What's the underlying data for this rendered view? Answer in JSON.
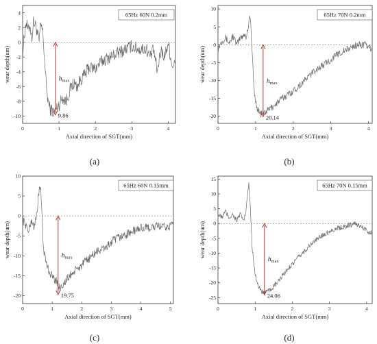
{
  "chart_data": [
    {
      "type": "line",
      "panel_label": "(a)",
      "legend": "65Hz 60N 0.2mm",
      "xlabel": "Axial direction of SGT(mm)",
      "ylabel": "wear depth(um)",
      "xlim": [
        0,
        4.2
      ],
      "ylim": [
        -11,
        5
      ],
      "xticks": [
        0,
        1,
        2,
        3,
        4
      ],
      "yticks": [
        4,
        2,
        0,
        -2,
        -4,
        -6,
        -8,
        -10
      ],
      "xtick_labels": [
        "0",
        "1",
        "2",
        "3",
        "4"
      ],
      "ytick_labels": [
        "4",
        "2",
        "0",
        "-2",
        "-4",
        "-6",
        "-8",
        "-10"
      ],
      "hmax_label": "h",
      "hmax_sub": "max",
      "hmax_value": "9.86",
      "hmax_x": 0.9,
      "hmax_depth": -9.86,
      "control_points": [
        [
          0,
          -1.5
        ],
        [
          0.05,
          1
        ],
        [
          0.1,
          2.8
        ],
        [
          0.15,
          1.5
        ],
        [
          0.2,
          2.5
        ],
        [
          0.25,
          0.5
        ],
        [
          0.3,
          2.8
        ],
        [
          0.38,
          2
        ],
        [
          0.45,
          0
        ],
        [
          0.5,
          2.4
        ],
        [
          0.55,
          1.5
        ],
        [
          0.6,
          -2
        ],
        [
          0.65,
          -6
        ],
        [
          0.7,
          -8
        ],
        [
          0.75,
          -9
        ],
        [
          0.85,
          -9.5
        ],
        [
          1.0,
          -8.5
        ],
        [
          1.1,
          -7.5
        ],
        [
          1.2,
          -8
        ],
        [
          1.3,
          -6.5
        ],
        [
          1.4,
          -5.5
        ],
        [
          1.5,
          -6
        ],
        [
          1.6,
          -5
        ],
        [
          1.7,
          -4.5
        ],
        [
          1.8,
          -3.5
        ],
        [
          2.0,
          -3.5
        ],
        [
          2.2,
          -2.5
        ],
        [
          2.4,
          -2
        ],
        [
          2.6,
          -1.5
        ],
        [
          2.8,
          -1
        ],
        [
          3.0,
          -0.5
        ],
        [
          3.2,
          -1
        ],
        [
          3.4,
          -0.8
        ],
        [
          3.5,
          -2
        ],
        [
          3.6,
          -1
        ],
        [
          3.7,
          -4
        ],
        [
          3.8,
          -1
        ],
        [
          3.9,
          -2
        ],
        [
          4.0,
          0
        ],
        [
          4.1,
          -3
        ]
      ],
      "noise_amplitude": 0.9
    },
    {
      "type": "line",
      "panel_label": "(b)",
      "legend": "65Hz 70N 0.2mm",
      "xlabel": "Axial direction of SGT(mm)",
      "ylabel": "wear depth(um)",
      "xlim": [
        0,
        4.1
      ],
      "ylim": [
        -22,
        11
      ],
      "xticks": [
        0,
        1,
        2,
        3,
        4
      ],
      "yticks": [
        10,
        5,
        0,
        -5,
        -10,
        -15,
        -20
      ],
      "xtick_labels": [
        "0",
        "1",
        "2",
        "3",
        "4"
      ],
      "ytick_labels": [
        "10",
        "5",
        "0",
        "-5",
        "-10",
        "-15",
        "-20"
      ],
      "hmax_label": "h",
      "hmax_sub": "max",
      "hmax_value": "20.14",
      "hmax_x": 1.2,
      "hmax_depth": -20.14,
      "control_points": [
        [
          0,
          -1
        ],
        [
          0.1,
          1
        ],
        [
          0.2,
          2
        ],
        [
          0.3,
          0.5
        ],
        [
          0.4,
          2.5
        ],
        [
          0.5,
          0
        ],
        [
          0.6,
          2
        ],
        [
          0.7,
          3
        ],
        [
          0.75,
          2
        ],
        [
          0.8,
          5
        ],
        [
          0.85,
          8.5
        ],
        [
          0.88,
          4
        ],
        [
          0.92,
          -5
        ],
        [
          0.97,
          -14
        ],
        [
          1.05,
          -18
        ],
        [
          1.15,
          -19.5
        ],
        [
          1.3,
          -18.5
        ],
        [
          1.5,
          -17
        ],
        [
          1.7,
          -15
        ],
        [
          2.0,
          -13
        ],
        [
          2.3,
          -10
        ],
        [
          2.6,
          -7
        ],
        [
          2.9,
          -5
        ],
        [
          3.2,
          -2.5
        ],
        [
          3.5,
          -1
        ],
        [
          3.7,
          0
        ],
        [
          3.9,
          0
        ],
        [
          4.05,
          -1
        ]
      ],
      "noise_amplitude": 1.0
    },
    {
      "type": "line",
      "panel_label": "(c)",
      "legend": "65Hz 60N 0.15mm",
      "xlabel": "Axial direction of SGT(mm)",
      "ylabel": "wear depth(um)",
      "xlim": [
        0,
        5.1
      ],
      "ylim": [
        -22,
        10
      ],
      "xticks": [
        0,
        1,
        2,
        3,
        4,
        5
      ],
      "yticks": [
        10,
        5,
        0,
        -5,
        -10,
        -15,
        -20
      ],
      "xtick_labels": [
        "0",
        "1",
        "2",
        "3",
        "4",
        "5"
      ],
      "ytick_labels": [
        "10",
        "5",
        "0",
        "-5",
        "-10",
        "-15",
        "-20"
      ],
      "hmax_label": "h",
      "hmax_sub": "max",
      "hmax_value": "19.75",
      "hmax_x": 1.2,
      "hmax_depth": -19.75,
      "control_points": [
        [
          0,
          -1
        ],
        [
          0.1,
          -2
        ],
        [
          0.2,
          -4
        ],
        [
          0.3,
          -1
        ],
        [
          0.4,
          -3
        ],
        [
          0.5,
          2
        ],
        [
          0.55,
          6
        ],
        [
          0.6,
          7
        ],
        [
          0.65,
          2
        ],
        [
          0.7,
          -8
        ],
        [
          0.8,
          -12
        ],
        [
          0.9,
          -14
        ],
        [
          1.1,
          -16
        ],
        [
          1.25,
          -18
        ],
        [
          1.4,
          -17
        ],
        [
          1.6,
          -15
        ],
        [
          1.9,
          -13
        ],
        [
          2.2,
          -11
        ],
        [
          2.5,
          -9
        ],
        [
          2.8,
          -8
        ],
        [
          3.1,
          -6
        ],
        [
          3.4,
          -5
        ],
        [
          3.7,
          -4
        ],
        [
          4.0,
          -3
        ],
        [
          4.3,
          -3
        ],
        [
          4.6,
          -2.5
        ],
        [
          4.9,
          -3
        ],
        [
          5.05,
          -2
        ]
      ],
      "noise_amplitude": 1.1
    },
    {
      "type": "line",
      "panel_label": "(d)",
      "legend": "65Hz 70N 0.15mm",
      "xlabel": "Axial direction of SGT(mm)",
      "ylabel": "wear depth(um)",
      "xlim": [
        0,
        4.15
      ],
      "ylim": [
        -27,
        16
      ],
      "xticks": [
        0,
        1,
        2,
        3,
        4
      ],
      "yticks": [
        15,
        10,
        5,
        0,
        -5,
        -10,
        -15,
        -20,
        -25
      ],
      "xtick_labels": [
        "0",
        "1",
        "2",
        "3",
        "4"
      ],
      "ytick_labels": [
        "15",
        "10",
        "5",
        "0",
        "-5",
        "-10",
        "-15",
        "-20",
        "-25"
      ],
      "hmax_label": "h",
      "hmax_sub": "max",
      "hmax_value": "24.06",
      "hmax_x": 1.25,
      "hmax_depth": -24.06,
      "control_points": [
        [
          0,
          3
        ],
        [
          0.1,
          2
        ],
        [
          0.2,
          4
        ],
        [
          0.3,
          2
        ],
        [
          0.4,
          3
        ],
        [
          0.5,
          1
        ],
        [
          0.6,
          3
        ],
        [
          0.7,
          1
        ],
        [
          0.75,
          4
        ],
        [
          0.8,
          10
        ],
        [
          0.83,
          13
        ],
        [
          0.87,
          6
        ],
        [
          0.92,
          -8
        ],
        [
          1.0,
          -17
        ],
        [
          1.1,
          -22
        ],
        [
          1.25,
          -23.5
        ],
        [
          1.4,
          -22.5
        ],
        [
          1.6,
          -20
        ],
        [
          1.9,
          -15
        ],
        [
          2.2,
          -11
        ],
        [
          2.5,
          -7
        ],
        [
          2.8,
          -4
        ],
        [
          3.1,
          -2
        ],
        [
          3.4,
          -1
        ],
        [
          3.7,
          0
        ],
        [
          3.9,
          -1.5
        ],
        [
          4.1,
          -3
        ]
      ],
      "noise_amplitude": 0.9
    }
  ]
}
